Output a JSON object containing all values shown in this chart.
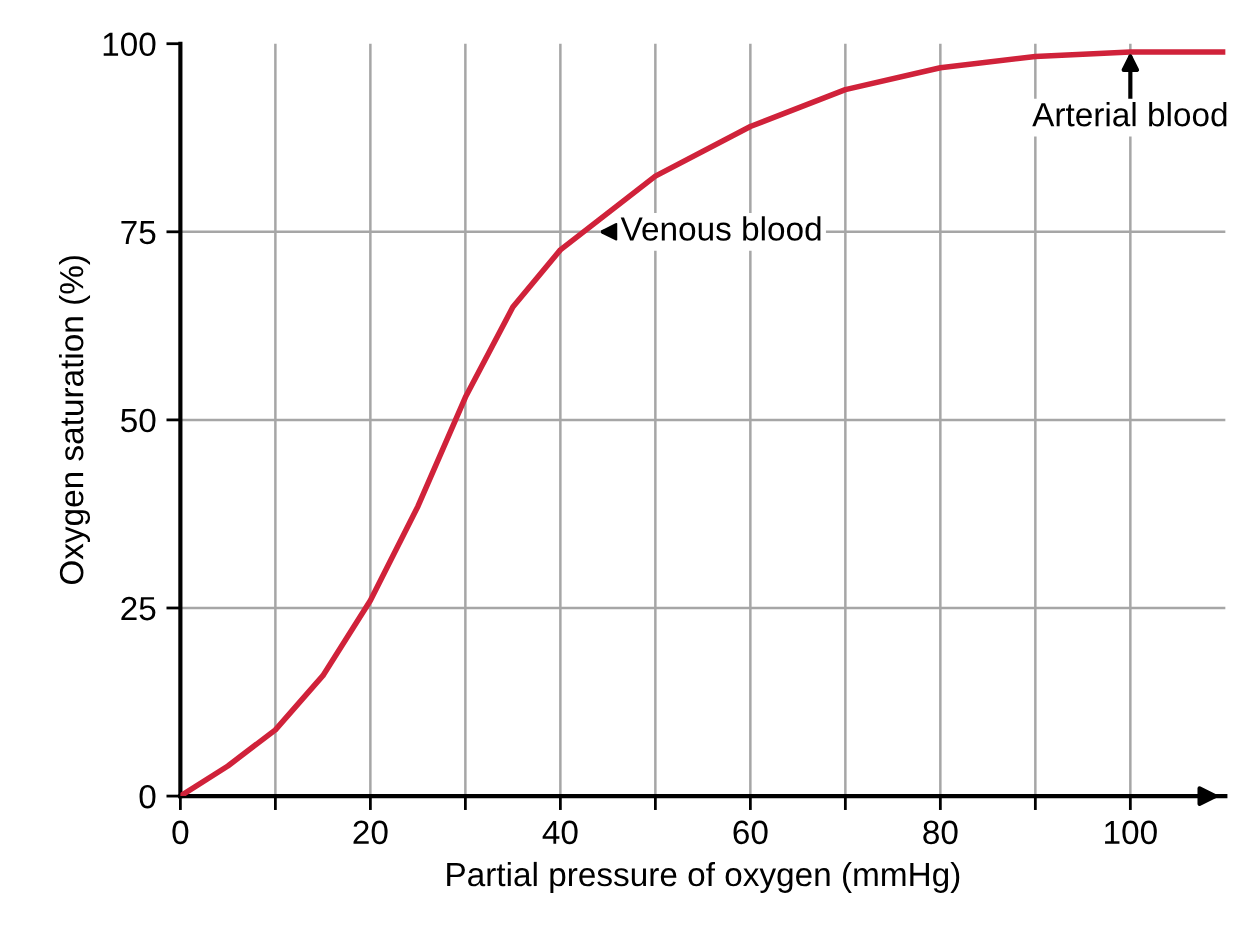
{
  "chart_data": {
    "type": "line",
    "xlabel": "Partial pressure of oxygen (mmHg)",
    "ylabel": "Oxygen saturation (%)",
    "x": [
      0,
      5,
      10,
      15,
      20,
      25,
      30,
      35,
      40,
      50,
      60,
      70,
      80,
      90,
      100,
      110
    ],
    "series": [
      {
        "color": "#d0223a",
        "values": [
          0,
          4,
          8.8,
          16,
          26,
          38.5,
          53,
          65,
          72.6,
          82.4,
          89,
          93.9,
          96.8,
          98.3,
          98.9,
          98.9
        ]
      }
    ],
    "xlim": [
      0,
      110
    ],
    "ylim": [
      0,
      100
    ],
    "xticks": [
      0,
      20,
      40,
      60,
      80,
      100
    ],
    "yticks": [
      0,
      25,
      50,
      75,
      100
    ],
    "grid": true,
    "marker": "none",
    "line_style": "solid",
    "annotations": [
      {
        "text": "Venous blood",
        "x": 44,
        "y": 75
      },
      {
        "text": "Arterial blood",
        "x": 100,
        "y": 98.9
      }
    ]
  }
}
